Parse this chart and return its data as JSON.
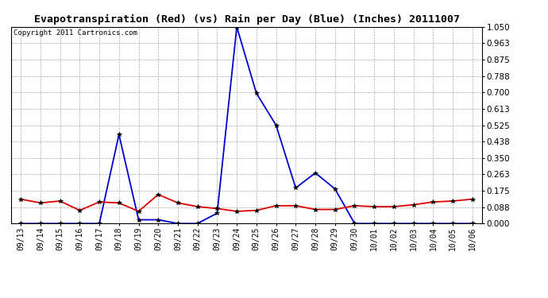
{
  "title": "Evapotranspiration (Red) (vs) Rain per Day (Blue) (Inches) 20111007",
  "copyright": "Copyright 2011 Cartronics.com",
  "x_labels": [
    "09/13",
    "09/14",
    "09/15",
    "09/16",
    "09/17",
    "09/18",
    "09/19",
    "09/20",
    "09/21",
    "09/22",
    "09/23",
    "09/24",
    "09/25",
    "09/26",
    "09/27",
    "09/28",
    "09/29",
    "09/30",
    "10/01",
    "10/02",
    "10/03",
    "10/04",
    "10/05",
    "10/06"
  ],
  "rain_blue": [
    0.0,
    0.0,
    0.0,
    0.0,
    0.0,
    0.475,
    0.02,
    0.02,
    0.0,
    0.0,
    0.055,
    1.05,
    0.695,
    0.525,
    0.19,
    0.27,
    0.185,
    0.0,
    0.0,
    0.0,
    0.0,
    0.0,
    0.0,
    0.0
  ],
  "et_red": [
    0.13,
    0.11,
    0.12,
    0.07,
    0.115,
    0.11,
    0.065,
    0.155,
    0.11,
    0.09,
    0.08,
    0.065,
    0.07,
    0.095,
    0.095,
    0.075,
    0.075,
    0.095,
    0.09,
    0.09,
    0.1,
    0.115,
    0.12,
    0.13
  ],
  "y_ticks": [
    0.0,
    0.088,
    0.175,
    0.263,
    0.35,
    0.438,
    0.525,
    0.613,
    0.7,
    0.788,
    0.875,
    0.963,
    1.05
  ],
  "ylim": [
    0.0,
    1.05
  ],
  "background_color": "#ffffff",
  "plot_bg_color": "#ffffff",
  "grid_color": "#aaaaaa",
  "blue_color": "#0000cc",
  "red_color": "#dd0000",
  "title_fontsize": 9.5,
  "copyright_fontsize": 6.5,
  "tick_fontsize": 7,
  "ytick_fontsize": 7.5
}
